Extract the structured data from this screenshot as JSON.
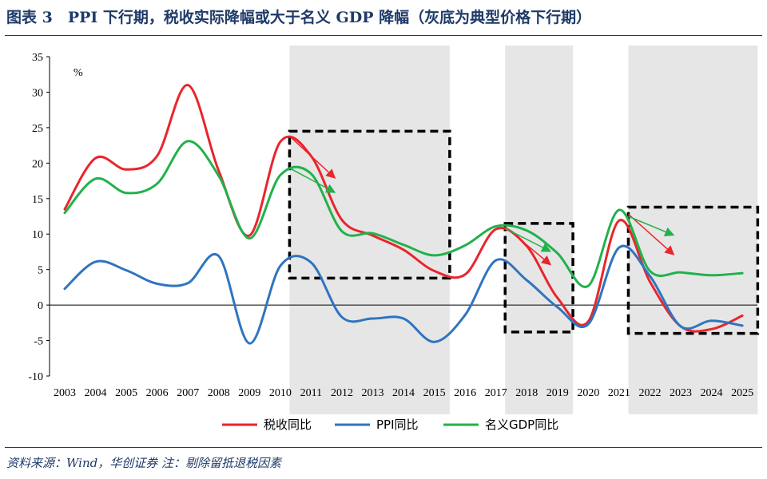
{
  "figure": {
    "title": "图表 3　PPI 下行期，税收实际降幅或大于名义 GDP 降幅（灰底为典型价格下行期）",
    "source": "资料来源：Wind，华创证券 注：剔除留抵退税因素"
  },
  "colors": {
    "tax": "#e8262c",
    "ppi": "#2f74c0",
    "gdp": "#22b14c",
    "shade": "#e6e6e6",
    "frame": "#1f3a68"
  },
  "chart_data": {
    "type": "line",
    "unit_label": "%",
    "categories": [
      "2003",
      "2004",
      "2005",
      "2006",
      "2007",
      "2008",
      "2009",
      "2010",
      "2011",
      "2012",
      "2013",
      "2014",
      "2015",
      "2016",
      "2017",
      "2018",
      "2019",
      "2020",
      "2021",
      "2022",
      "2023",
      "2024",
      "2025"
    ],
    "ylim": [
      -10,
      35
    ],
    "yticks": [
      -10,
      -5,
      0,
      5,
      10,
      15,
      20,
      25,
      30,
      35
    ],
    "grid": false,
    "legend_position": "bottom",
    "series": [
      {
        "name": "税收同比",
        "color_key": "tax",
        "values": [
          13.5,
          20.7,
          19.1,
          21.0,
          31.0,
          18.9,
          9.8,
          23.0,
          21.0,
          12.0,
          9.8,
          7.8,
          4.8,
          4.3,
          10.7,
          8.3,
          1.0,
          -2.3,
          11.9,
          3.3,
          -3.0,
          -3.4,
          -1.5
        ]
      },
      {
        "name": "PPI同比",
        "color_key": "ppi",
        "values": [
          2.3,
          6.1,
          4.9,
          3.0,
          3.1,
          6.9,
          -5.4,
          5.5,
          6.0,
          -1.7,
          -1.9,
          -1.9,
          -5.2,
          -1.4,
          6.3,
          3.5,
          -0.3,
          -2.7,
          8.1,
          4.1,
          -3.0,
          -2.2,
          -2.9
        ]
      },
      {
        "name": "名义GDP同比",
        "color_key": "gdp",
        "values": [
          13.0,
          17.8,
          15.8,
          17.1,
          23.1,
          18.2,
          9.4,
          18.3,
          18.5,
          10.4,
          10.1,
          8.5,
          7.0,
          8.4,
          11.1,
          10.5,
          7.3,
          2.7,
          13.4,
          4.8,
          4.6,
          4.2,
          4.5
        ]
      }
    ],
    "shaded_periods": [
      {
        "from": "2010",
        "to": "2015"
      },
      {
        "from": "2017",
        "to": "2019"
      },
      {
        "from": "2021",
        "to": "2025"
      }
    ],
    "dashed_boxes": [
      {
        "x0": "2010",
        "x1": "2015",
        "y0": 3.8,
        "y1": 24.5
      },
      {
        "x0": "2017",
        "x1": "2019",
        "y0": -3.8,
        "y1": 11.5
      },
      {
        "x0": "2021",
        "x1": "2025",
        "y0": -4.0,
        "y1": 13.8
      }
    ],
    "arrows": [
      {
        "color_key": "tax",
        "from": [
          "2010",
          23.8
        ],
        "to": [
          "2011",
          17.8
        ]
      },
      {
        "color_key": "gdp",
        "from": [
          "2010",
          19.3
        ],
        "to": [
          "2011",
          15.8
        ]
      },
      {
        "color_key": "tax",
        "from": [
          "2017",
          11.0
        ],
        "to": [
          "2018",
          5.6
        ]
      },
      {
        "color_key": "gdp",
        "from": [
          "2017",
          10.8
        ],
        "to": [
          "2018",
          7.5
        ]
      },
      {
        "color_key": "tax",
        "from": [
          "2021",
          12.8
        ],
        "to": [
          "2022",
          7.0
        ]
      },
      {
        "color_key": "gdp",
        "from": [
          "2021",
          12.5
        ],
        "to": [
          "2022",
          9.8
        ]
      }
    ]
  }
}
